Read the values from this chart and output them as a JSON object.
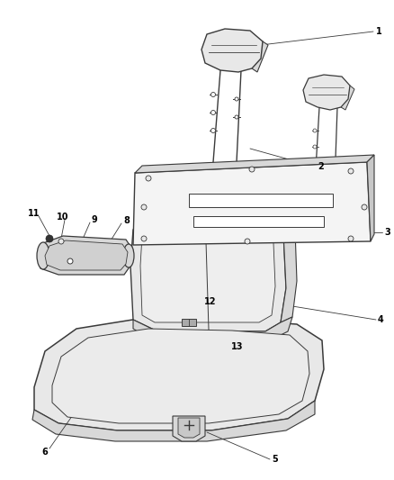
{
  "background_color": "#ffffff",
  "line_color": "#3a3a3a",
  "fill_light": "#e8e8e8",
  "fill_medium": "#d8d8d8",
  "fill_dark": "#c8c8c8",
  "fig_width": 4.38,
  "fig_height": 5.33,
  "dpi": 100
}
